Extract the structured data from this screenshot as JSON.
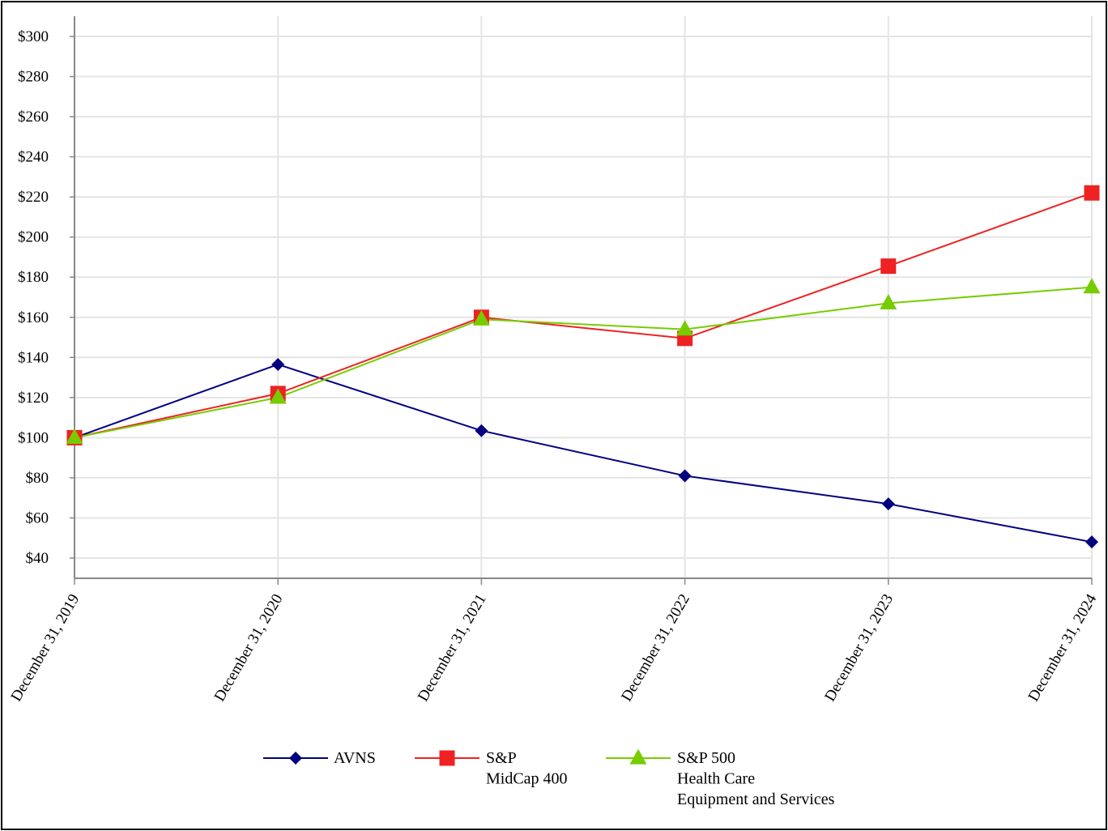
{
  "chart_data": {
    "type": "line",
    "title": "",
    "xlabel": "",
    "ylabel": "",
    "categories": [
      "December 31, 2019",
      "December 31, 2020",
      "December 31, 2021",
      "December 31, 2022",
      "December 31, 2023",
      "December 31, 2024"
    ],
    "ylim": [
      30,
      310
    ],
    "yticks": [
      40,
      60,
      80,
      100,
      120,
      140,
      160,
      180,
      200,
      220,
      240,
      260,
      280,
      300
    ],
    "ytick_labels": [
      "$40",
      "$60",
      "$80",
      "$100",
      "$120",
      "$140",
      "$160",
      "$180",
      "$200",
      "$220",
      "$240",
      "$260",
      "$280",
      "$300"
    ],
    "grid": true,
    "legend_position": "bottom",
    "series": [
      {
        "name": "AVNS",
        "legend_lines": [
          "AVNS"
        ],
        "color": "#000080",
        "marker": "diamond",
        "values": [
          100,
          136.5,
          103.5,
          81,
          67,
          48
        ]
      },
      {
        "name": "S&P MidCap 400",
        "legend_lines": [
          "S&P",
          "MidCap 400"
        ],
        "color": "#ee2222",
        "marker": "square",
        "values": [
          100,
          122,
          160,
          149.5,
          185.5,
          222
        ]
      },
      {
        "name": "S&P 500 Health Care Equipment and Services",
        "legend_lines": [
          "S&P 500",
          "Health Care",
          "Equipment and Services"
        ],
        "color": "#77cc00",
        "marker": "triangle",
        "values": [
          100,
          120,
          159,
          154,
          167,
          175
        ]
      }
    ]
  }
}
